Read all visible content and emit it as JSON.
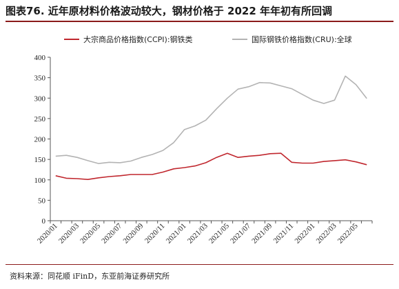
{
  "figure": {
    "title": "图表76. 近年原材料价格波动较大，钢材价格于 2022 年年初有所回调",
    "source": "资料来源：同花顺 iFinD，东亚前海证券研究所"
  },
  "chart_data": {
    "type": "line",
    "x": [
      "2020/01",
      "2020/02",
      "2020/03",
      "2020/04",
      "2020/05",
      "2020/06",
      "2020/07",
      "2020/08",
      "2020/09",
      "2020/10",
      "2020/11",
      "2020/12",
      "2021/01",
      "2021/02",
      "2021/03",
      "2021/04",
      "2021/05",
      "2021/06",
      "2021/07",
      "2021/08",
      "2021/09",
      "2021/10",
      "2021/11",
      "2021/12",
      "2022/01",
      "2022/02",
      "2022/03",
      "2022/04",
      "2022/05",
      "2022/06"
    ],
    "x_tick_labels": [
      "2020/01",
      "2020/03",
      "2020/05",
      "2020/07",
      "2020/09",
      "2020/11",
      "2021/01",
      "2021/03",
      "2021/05",
      "2021/07",
      "2021/09",
      "2021/11",
      "2022/01",
      "2022/03",
      "2022/05"
    ],
    "ylim": [
      0,
      400
    ],
    "yticks": [
      0,
      50,
      100,
      150,
      200,
      250,
      300,
      350,
      400
    ],
    "grid": false,
    "legend_position": "top",
    "series": [
      {
        "name": "大宗商品价格指数(CCPI):钢铁类",
        "color": "#c0262d",
        "values": [
          110,
          104,
          103,
          101,
          105,
          108,
          110,
          113,
          113,
          113,
          119,
          127,
          130,
          134,
          142,
          155,
          165,
          155,
          158,
          160,
          164,
          165,
          143,
          141,
          141,
          145,
          147,
          149,
          144,
          137
        ]
      },
      {
        "name": "国际钢铁价格指数(CRU):全球",
        "color": "#b3b3b3",
        "values": [
          158,
          160,
          155,
          147,
          140,
          143,
          142,
          146,
          155,
          162,
          172,
          191,
          223,
          232,
          246,
          274,
          300,
          322,
          328,
          338,
          337,
          330,
          323,
          309,
          295,
          287,
          295,
          354,
          333,
          299
        ]
      }
    ]
  }
}
